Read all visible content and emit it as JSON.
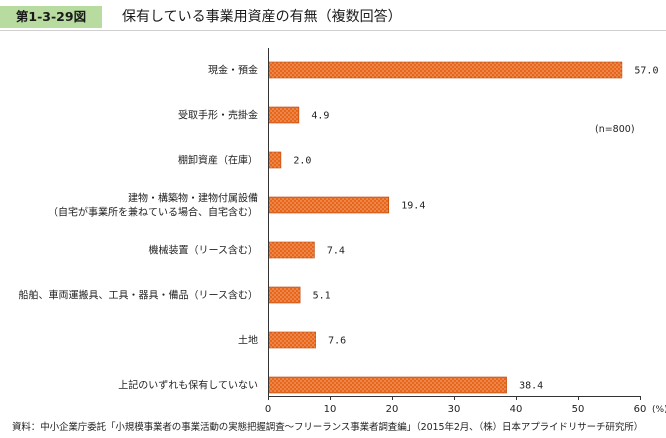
{
  "figure": {
    "number": "第1-3-29図",
    "title": "保有している事業用資産の有無（複数回答）"
  },
  "note": "(n=800)",
  "source": "資料：中小企業庁委託「小規模事業者の事業活動の実態把握調査～フリーランス事業者調査編」（2015年2月、（株）日本アプライドリサーチ研究所）",
  "colors": {
    "bar_fill": "#e8661a",
    "bar_dot": "#ffffff",
    "axis": "#333333",
    "header_badge": "#b8dca0"
  },
  "chart_data": {
    "type": "bar",
    "orientation": "horizontal",
    "categories": [
      [
        "現金・預金"
      ],
      [
        "受取手形・売掛金"
      ],
      [
        "棚卸資産（在庫）"
      ],
      [
        "建物・構築物・建物付属設備",
        "（自宅が事業所を兼ねている場合、自宅含む）"
      ],
      [
        "機械装置（リース含む）"
      ],
      [
        "船舶、車両運搬具、工具・器具・備品（リース含む）"
      ],
      [
        "土地"
      ],
      [
        "上記のいずれも保有していない"
      ]
    ],
    "values": [
      57.0,
      4.9,
      2.0,
      19.4,
      7.4,
      5.1,
      7.6,
      38.4
    ],
    "value_labels": [
      "57.0",
      "4.9",
      "2.0",
      "19.4",
      "7.4",
      "5.1",
      "7.6",
      "38.4"
    ],
    "xlim": [
      0,
      60
    ],
    "xticks": [
      0,
      10,
      20,
      30,
      40,
      50,
      60
    ],
    "xunit": "(%)",
    "grid": false
  }
}
